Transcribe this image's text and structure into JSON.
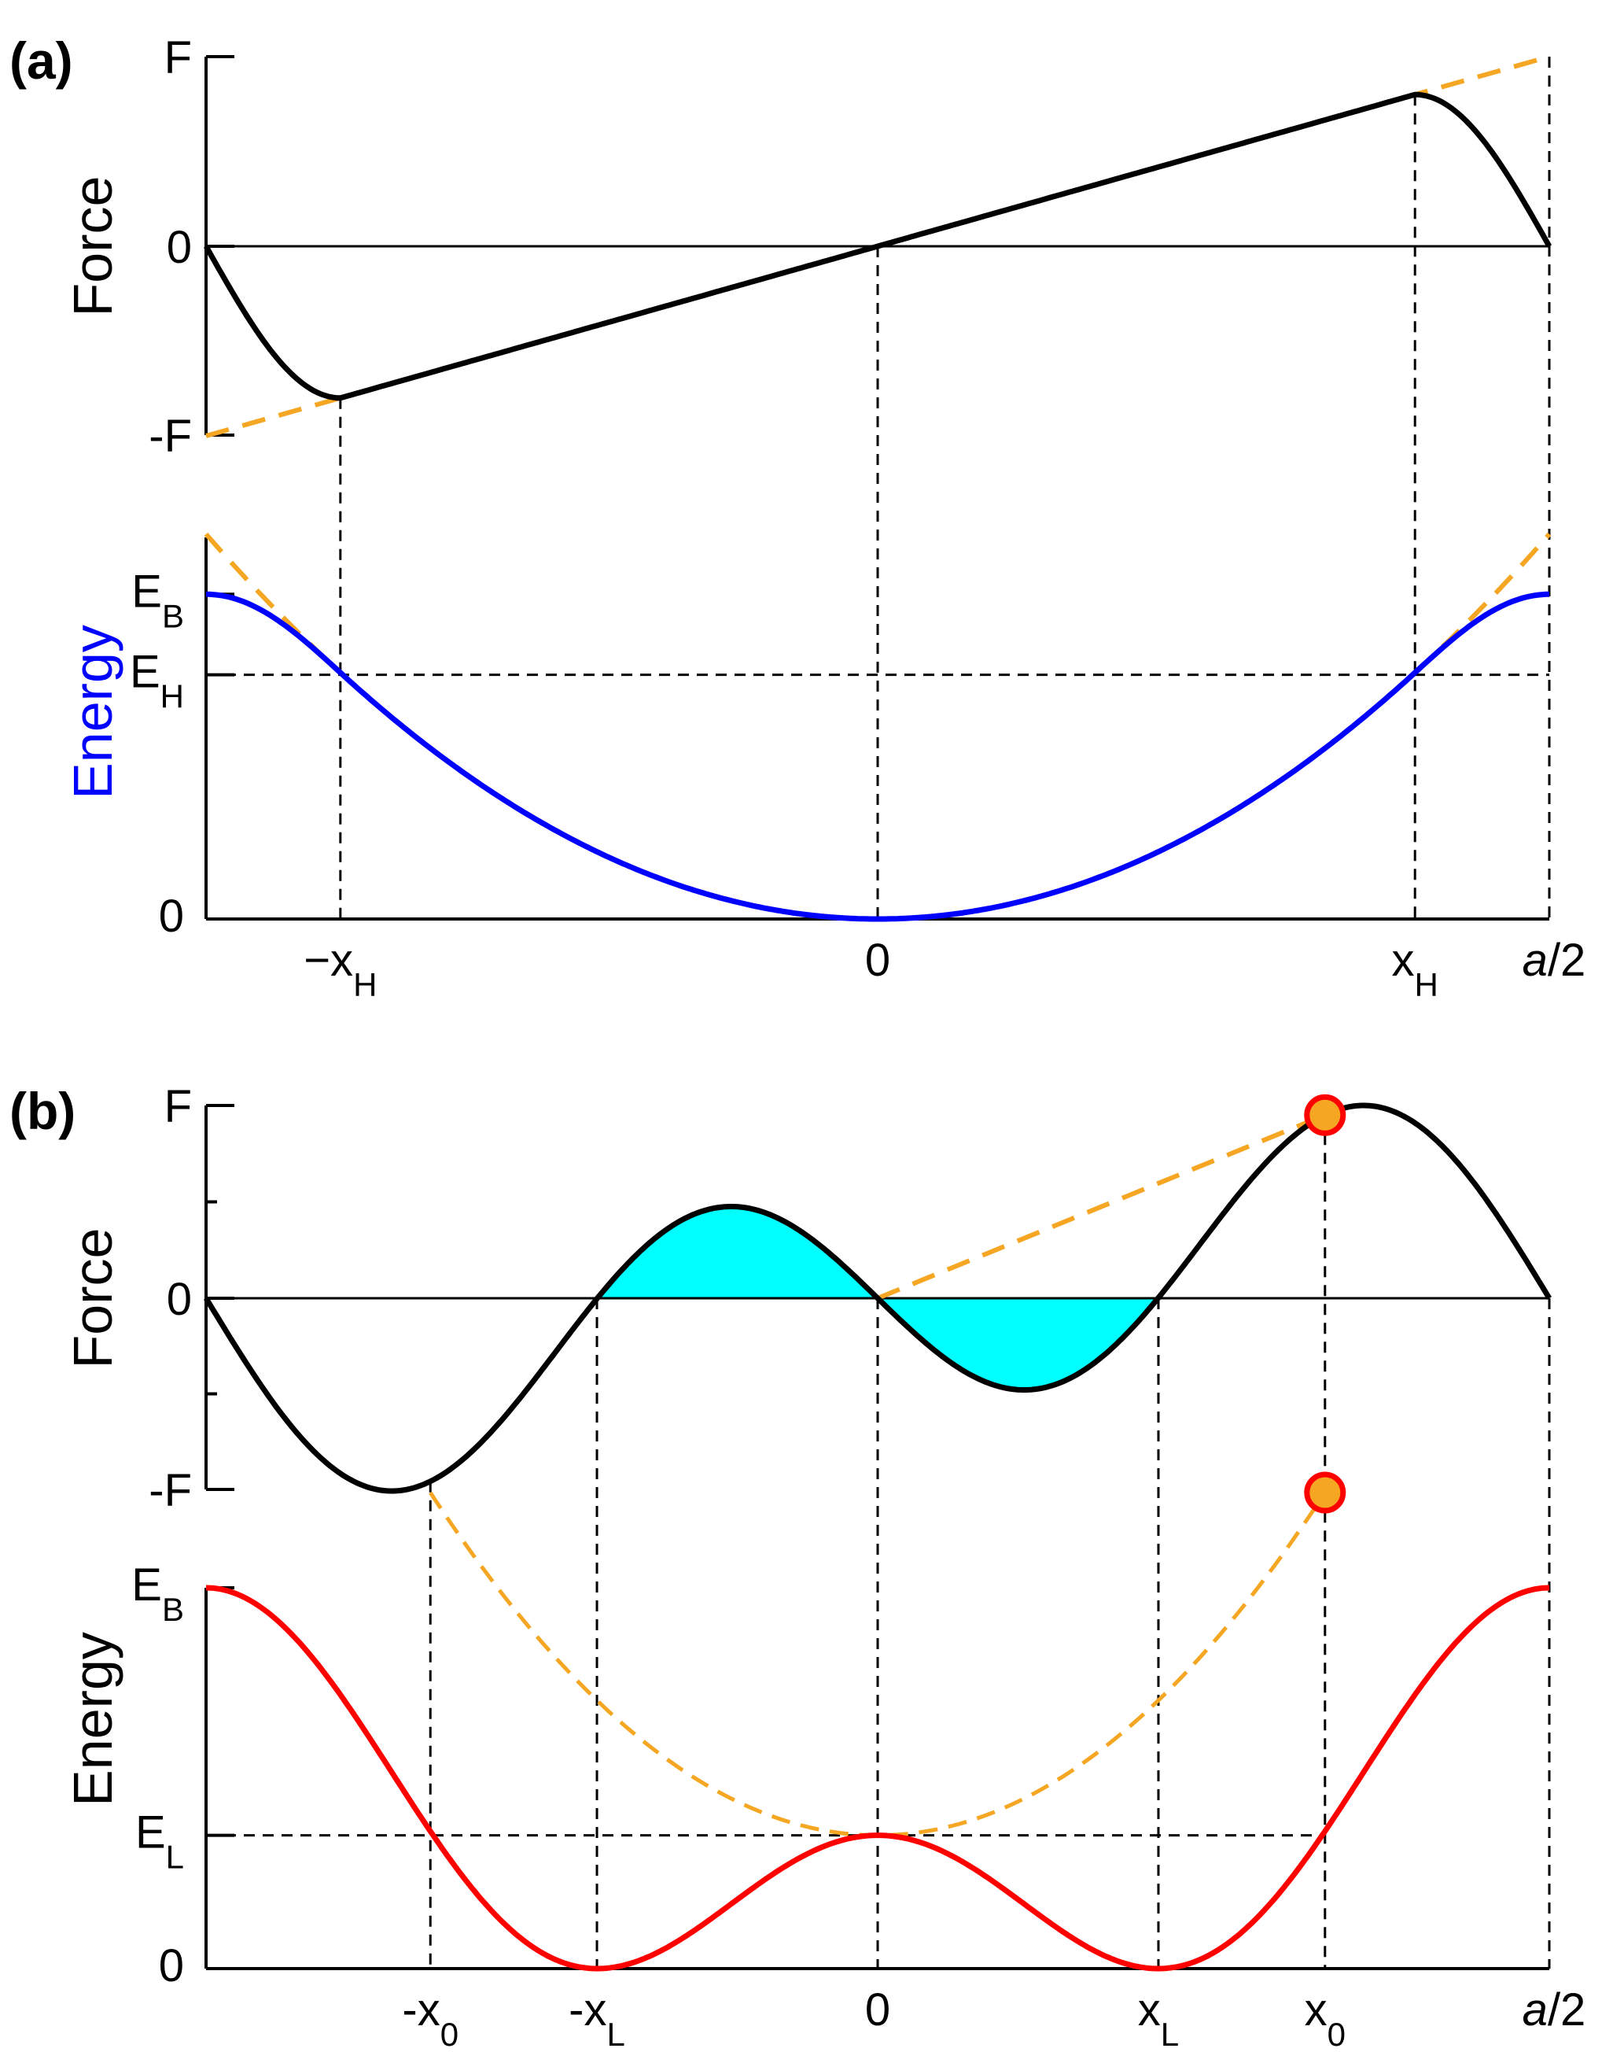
{
  "colors": {
    "force_curve": "#000000",
    "energy_curve_a": "#0000ff",
    "energy_curve_b": "#ff0000",
    "dashed_reference": "#f5a623",
    "shaded_area": "#00ffff",
    "marker_fill": "#f5a623",
    "marker_edge": "#ff0000"
  },
  "panels": {
    "a": {
      "label": "(a)"
    },
    "b": {
      "label": "(b)"
    }
  },
  "chart_data": [
    {
      "id": "a-force",
      "type": "line",
      "panel": "(a)",
      "ylabel": "Force",
      "ylim": [
        -1,
        1
      ],
      "xlim": [
        -0.5,
        0.5
      ],
      "yticks": [
        {
          "label": "F"
        },
        {
          "label": "0"
        },
        {
          "label": "-F"
        }
      ],
      "params": {
        "xH": 0.4
      },
      "series": [
        {
          "name": "force",
          "color": "#000000",
          "style": "solid"
        },
        {
          "name": "linear extrapolation",
          "color": "#f5a623",
          "style": "dashed",
          "x": [
            -0.5,
            0.5
          ],
          "y": [
            -1,
            1
          ]
        }
      ]
    },
    {
      "id": "a-energy",
      "type": "line",
      "panel": "(a)",
      "ylabel": "Energy",
      "ylabel_color": "#0000ff",
      "xlim": [
        -0.5,
        0.5
      ],
      "ylim": [
        0,
        1.0
      ],
      "yticks": [
        {
          "label": "E",
          "sub": "B",
          "value": 0.851
        },
        {
          "label": "E",
          "sub": "H",
          "value": 0.64
        },
        {
          "label": "0",
          "sub": "",
          "value": 0
        }
      ],
      "xticks": [
        {
          "label": "−x",
          "sub": "H",
          "value": -0.4
        },
        {
          "label": "0",
          "sub": "",
          "value": 0
        },
        {
          "label": "x",
          "sub": "H",
          "value": 0.4
        },
        {
          "label": "a/2",
          "sub": "",
          "value": 0.5,
          "italic_char": "a"
        }
      ],
      "series": [
        {
          "name": "energy",
          "color": "#0000ff",
          "style": "solid"
        },
        {
          "name": "harmonic extrapolation",
          "color": "#f5a623",
          "style": "dashed"
        }
      ]
    },
    {
      "id": "b-force",
      "type": "line",
      "panel": "(b)",
      "ylabel": "Force",
      "ylim": [
        -1,
        1
      ],
      "xlim": [
        -0.5,
        0.5
      ],
      "yticks": [
        {
          "label": "F"
        },
        {
          "label": "0"
        },
        {
          "label": "-F"
        }
      ],
      "params": {
        "xL": 0.209,
        "x0": 0.333
      },
      "series": [
        {
          "name": "force",
          "color": "#000000",
          "style": "solid"
        },
        {
          "name": "linear extrapolation",
          "color": "#f5a623",
          "style": "dashed",
          "x": [
            0,
            0.333
          ],
          "y": [
            0,
            0.944
          ]
        }
      ],
      "shaded_regions": [
        [
          -0.209,
          0
        ],
        [
          0,
          0.209
        ]
      ],
      "markers": [
        {
          "x": 0.333,
          "y": 0.944
        }
      ]
    },
    {
      "id": "b-energy",
      "type": "line",
      "panel": "(b)",
      "ylabel": "Energy",
      "ylabel_color": "#000000",
      "xlim": [
        -0.5,
        0.5
      ],
      "ylim": [
        0,
        1.05
      ],
      "yticks": [
        {
          "label": "E",
          "sub": "B",
          "value": 1.0
        },
        {
          "label": "E",
          "sub": "L",
          "value": 0.35
        },
        {
          "label": "0",
          "sub": "",
          "value": 0
        }
      ],
      "xticks": [
        {
          "label": "-x",
          "sub": "0",
          "value": -0.333
        },
        {
          "label": "-x",
          "sub": "L",
          "value": -0.209
        },
        {
          "label": "0",
          "sub": "",
          "value": 0
        },
        {
          "label": "x",
          "sub": "L",
          "value": 0.209
        },
        {
          "label": "x",
          "sub": "0",
          "value": 0.333
        },
        {
          "label": "a/2",
          "sub": "",
          "value": 0.5,
          "italic_char": "a"
        }
      ],
      "series": [
        {
          "name": "energy",
          "color": "#ff0000",
          "style": "solid"
        },
        {
          "name": "harmonic extrapolation",
          "color": "#f5a623",
          "style": "dashed"
        }
      ],
      "markers": [
        {
          "x": 0.333,
          "y": 1.0
        }
      ]
    }
  ]
}
